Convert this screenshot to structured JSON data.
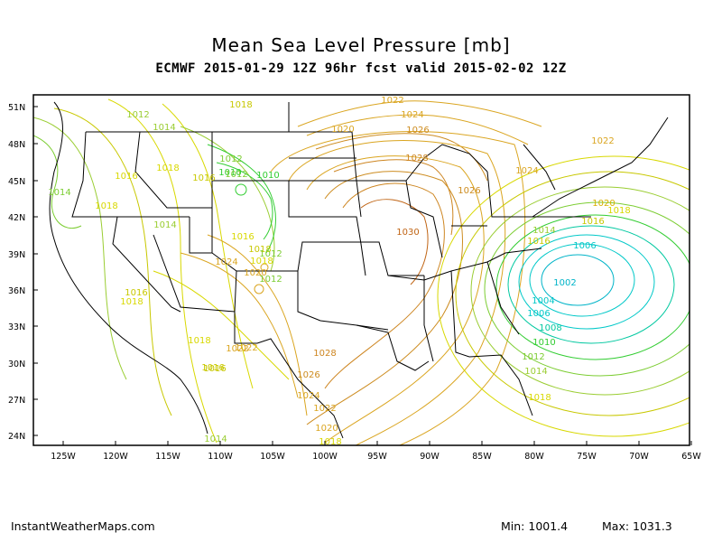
{
  "header": {
    "title": "Mean Sea Level Pressure [mb]",
    "subtitle": "ECMWF 2015-01-29 12Z 96hr fcst valid 2015-02-02 12Z"
  },
  "footer": {
    "credit": "InstantWeatherMaps.com",
    "min": "Min: 1001.4",
    "max": "Max: 1031.3"
  },
  "map": {
    "lat_labels": [
      "51N",
      "48N",
      "45N",
      "42N",
      "39N",
      "36N",
      "33N",
      "30N",
      "27N",
      "24N"
    ],
    "lon_labels": [
      "125W",
      "120W",
      "115W",
      "110W",
      "105W",
      "100W",
      "95W",
      "90W",
      "85W",
      "80W",
      "75W",
      "70W",
      "65W"
    ],
    "contour_labels": [
      {
        "text": "1012",
        "color": "#9acd32"
      },
      {
        "text": "1014",
        "color": "#9acd32"
      },
      {
        "text": "1016",
        "color": "#d8d800"
      },
      {
        "text": "1018",
        "color": "#d8d800"
      },
      {
        "text": "1014",
        "color": "#7ccd32"
      },
      {
        "text": "1018",
        "color": "#d8d800"
      },
      {
        "text": "1014",
        "color": "#9acd32"
      },
      {
        "text": "1016",
        "color": "#c8c800"
      },
      {
        "text": "1012",
        "color": "#7ccd32"
      },
      {
        "text": "1010",
        "color": "#32cd32"
      },
      {
        "text": "1010",
        "color": "#32cd32"
      },
      {
        "text": "1016",
        "color": "#d8d800"
      },
      {
        "text": "1018",
        "color": "#c8c800"
      },
      {
        "text": "1018",
        "color": "#c8c800"
      },
      {
        "text": "1022",
        "color": "#daa520"
      },
      {
        "text": "1024",
        "color": "#daa520"
      },
      {
        "text": "1020",
        "color": "#daa520"
      },
      {
        "text": "1026",
        "color": "#cd8c20"
      },
      {
        "text": "1028",
        "color": "#cd8520"
      },
      {
        "text": "1026",
        "color": "#cd8c20"
      },
      {
        "text": "1024",
        "color": "#daa520"
      },
      {
        "text": "1022",
        "color": "#daa520"
      },
      {
        "text": "1030",
        "color": "#c06414"
      },
      {
        "text": "1020",
        "color": "#d8b000"
      },
      {
        "text": "1018",
        "color": "#d8d800"
      },
      {
        "text": "1016",
        "color": "#c8c800"
      },
      {
        "text": "1014",
        "color": "#9acd32"
      },
      {
        "text": "1016",
        "color": "#c8c800"
      },
      {
        "text": "1006",
        "color": "#00c8c8"
      },
      {
        "text": "1002",
        "color": "#00b4c8"
      },
      {
        "text": "1004",
        "color": "#00c8c8"
      },
      {
        "text": "1006",
        "color": "#00c8c8"
      },
      {
        "text": "1008",
        "color": "#00c8a0"
      },
      {
        "text": "1010",
        "color": "#32cd32"
      },
      {
        "text": "1012",
        "color": "#7ccd32"
      },
      {
        "text": "1014",
        "color": "#9acd32"
      },
      {
        "text": "1018",
        "color": "#d8d800"
      },
      {
        "text": "1012",
        "color": "#7ccd32"
      },
      {
        "text": "1018",
        "color": "#d8d800"
      },
      {
        "text": "1024",
        "color": "#daa520"
      },
      {
        "text": "1020",
        "color": "#daa520"
      },
      {
        "text": "1022",
        "color": "#daa520"
      },
      {
        "text": "1016",
        "color": "#c8c800"
      },
      {
        "text": "1012",
        "color": "#7ccd32"
      },
      {
        "text": "1016",
        "color": "#c8c800"
      },
      {
        "text": "1018",
        "color": "#d8d800"
      },
      {
        "text": "1018",
        "color": "#d8d800"
      },
      {
        "text": "1022",
        "color": "#daa520"
      },
      {
        "text": "1016",
        "color": "#c8c800"
      },
      {
        "text": "1028",
        "color": "#cd8520"
      },
      {
        "text": "1026",
        "color": "#cd8c20"
      },
      {
        "text": "1024",
        "color": "#daa520"
      },
      {
        "text": "1022",
        "color": "#daa520"
      },
      {
        "text": "1020",
        "color": "#daa520"
      },
      {
        "text": "1018",
        "color": "#d8d800"
      },
      {
        "text": "1014",
        "color": "#9acd32"
      },
      {
        "text": "1012",
        "color": "#7ccd32"
      }
    ]
  }
}
